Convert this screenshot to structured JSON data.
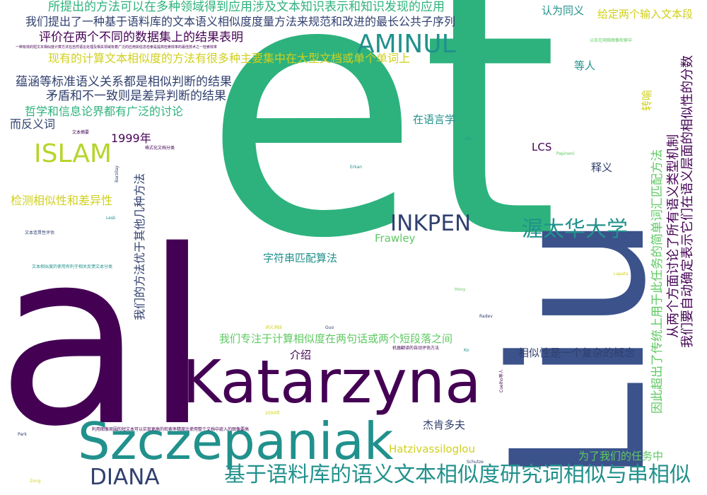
{
  "palette": {
    "dark_purple": "#440154",
    "indigo": "#3b528b",
    "teal": "#21918c",
    "green": "#2db27d",
    "lime": "#5ec962",
    "yellow": "#d0d01e"
  },
  "words": [
    {
      "text": "et",
      "color": "#2db27d",
      "orientation": "horizontal"
    },
    {
      "text": "al",
      "color": "#440154",
      "orientation": "horizontal"
    },
    {
      "text": "Liu",
      "color": "#3b528b",
      "orientation": "vertical"
    },
    {
      "text": "Katarzyna",
      "color": "#440154",
      "orientation": "horizontal"
    },
    {
      "text": "Szczepaniak",
      "color": "#21918c",
      "orientation": "horizontal"
    },
    {
      "text": "AMINUL",
      "color": "#21918c",
      "orientation": "horizontal"
    },
    {
      "text": "ISLAM",
      "color": "#b5d52a",
      "orientation": "horizontal"
    },
    {
      "text": "INKPEN",
      "color": "#31406f",
      "orientation": "horizontal"
    },
    {
      "text": "DIANA",
      "color": "#31406f",
      "orientation": "horizontal"
    },
    {
      "text": "渥太华大学",
      "color": "#21918c",
      "orientation": "horizontal"
    },
    {
      "text": "基于语料库的语义文本相似度研究词相似与串相似",
      "color": "#21918c",
      "orientation": "horizontal"
    },
    {
      "text": "所提出的方法可以在多种领域得到应用涉及文本知识表示和知识发现的应用",
      "color": "#2db27d",
      "orientation": "horizontal"
    },
    {
      "text": "我们提出了一种基于语料库的文本语义相似度度量方法来规范和改进的最长公共子序列",
      "color": "#31406f",
      "orientation": "horizontal"
    },
    {
      "text": "评价在两个不同的数据集上的结果表明",
      "color": "#440154",
      "orientation": "horizontal"
    },
    {
      "text": "一种有效的短文本相似度计算方法在自然语言处理及相关领域有着广泛的应用如信息检索是提高检索效率的最佳技术之一检索效率",
      "color": "#440154",
      "orientation": "horizontal"
    },
    {
      "text": "现有的计算文本相似度的方法有很多种主要集中在大型文档或单个单词上",
      "color": "#d0d01e",
      "orientation": "horizontal"
    },
    {
      "text": "蕴涵等标准语义关系都是相似判断的结果",
      "color": "#31406f",
      "orientation": "horizontal"
    },
    {
      "text": "矛盾和不一致则是差异判断的结果",
      "color": "#31406f",
      "orientation": "horizontal"
    },
    {
      "text": "哲学和信息论界都有广泛的讨论",
      "color": "#2db27d",
      "orientation": "horizontal"
    },
    {
      "text": "而反义词",
      "color": "#31406f",
      "orientation": "horizontal"
    },
    {
      "text": "1999年",
      "color": "#440154",
      "orientation": "horizontal"
    },
    {
      "text": "检测相似性和差异性",
      "color": "#d0d01e",
      "orientation": "horizontal"
    },
    {
      "text": "认为同义",
      "color": "#21918c",
      "orientation": "horizontal"
    },
    {
      "text": "给定两个输入文本段",
      "color": "#d0d01e",
      "orientation": "horizontal"
    },
    {
      "text": "以及在网络图像检索中",
      "color": "#5ec962",
      "orientation": "horizontal"
    },
    {
      "text": "等人",
      "color": "#21918c",
      "orientation": "horizontal"
    },
    {
      "text": "在语言学",
      "color": "#21918c",
      "orientation": "horizontal"
    },
    {
      "text": "LCS",
      "color": "#440154",
      "orientation": "horizontal"
    },
    {
      "text": "Papineni",
      "color": "#5ec962",
      "orientation": "horizontal"
    },
    {
      "text": "释义",
      "color": "#31406f",
      "orientation": "horizontal"
    },
    {
      "text": "Frawley",
      "color": "#5ec962",
      "orientation": "horizontal"
    },
    {
      "text": "字符串匹配算法",
      "color": "#21918c",
      "orientation": "horizontal"
    },
    {
      "text": "我们专注于计算相似度在两句话或两个短段落之间",
      "color": "#5ec962",
      "orientation": "horizontal"
    },
    {
      "text": "介绍",
      "color": "#440154",
      "orientation": "horizontal"
    },
    {
      "text": "相似性是一个复杂的概念",
      "color": "#31406f",
      "orientation": "horizontal"
    },
    {
      "text": "杰肯多夫",
      "color": "#31406f",
      "orientation": "horizontal"
    },
    {
      "text": "Hatzivassiloglou",
      "color": "#d0d01e",
      "orientation": "horizontal"
    },
    {
      "text": "为了我们的任务中",
      "color": "#5ec962",
      "orientation": "horizontal"
    },
    {
      "text": "文本摘要",
      "color": "#440154",
      "orientation": "horizontal"
    },
    {
      "text": "格式化文档分类",
      "color": "#440154",
      "orientation": "horizontal"
    },
    {
      "text": "Lin",
      "color": "#21918c",
      "orientation": "horizontal"
    },
    {
      "text": "Erkan",
      "color": "#21918c",
      "orientation": "horizontal"
    },
    {
      "text": "Lesk",
      "color": "#21918c",
      "orientation": "horizontal"
    },
    {
      "text": "文本连贯性评估",
      "color": "#31406f",
      "orientation": "horizontal"
    },
    {
      "text": "文本相似度的使用有利于相关反馈文本分类",
      "color": "#21918c",
      "orientation": "horizontal"
    },
    {
      "text": "Hovy",
      "color": "#5ec962",
      "orientation": "horizontal"
    },
    {
      "text": "Lapata",
      "color": "#d0d01e",
      "orientation": "horizontal"
    },
    {
      "text": "Radev",
      "color": "#31406f",
      "orientation": "horizontal"
    },
    {
      "text": "Guo",
      "color": "#31406f",
      "orientation": "horizontal"
    },
    {
      "text": "词义消歧",
      "color": "#d0d01e",
      "orientation": "horizontal"
    },
    {
      "text": "机器翻译的自动评估方法",
      "color": "#440154",
      "orientation": "horizontal"
    },
    {
      "text": "Ko",
      "color": "#21918c",
      "orientation": "horizontal"
    },
    {
      "text": "Schutze",
      "color": "#31406f",
      "orientation": "horizontal"
    },
    {
      "text": "2004年",
      "color": "#d0d01e",
      "orientation": "horizontal"
    },
    {
      "text": "利用图像周围的短文本可以实现更高的检索率精度比使用整个文档中嵌入的图像要高",
      "color": "#440154",
      "orientation": "horizontal"
    },
    {
      "text": "Park",
      "color": "#31406f",
      "orientation": "horizontal"
    },
    {
      "text": "Zong",
      "color": "#d0d01e",
      "orientation": "horizontal"
    },
    {
      "text": "我们的方法优于其他几种方法",
      "color": "#31406f",
      "orientation": "vertical"
    },
    {
      "text": "转喻",
      "color": "#d0d01e",
      "orientation": "vertical"
    },
    {
      "text": "我们要自动确定表示它们在语义层面的相似性的分数",
      "color": "#440154",
      "orientation": "vertical"
    },
    {
      "text": "从两个方面讨论了所有语义类型机制",
      "color": "#440154",
      "orientation": "vertical"
    },
    {
      "text": "因此超出了传统上用于此任务的简单词汇匹配方法",
      "color": "#5ec962",
      "orientation": "vertical"
    },
    {
      "text": "Barzilay",
      "color": "#31406f",
      "orientation": "vertical"
    },
    {
      "text": "Coelho等人",
      "color": "#440154",
      "orientation": "vertical"
    }
  ]
}
